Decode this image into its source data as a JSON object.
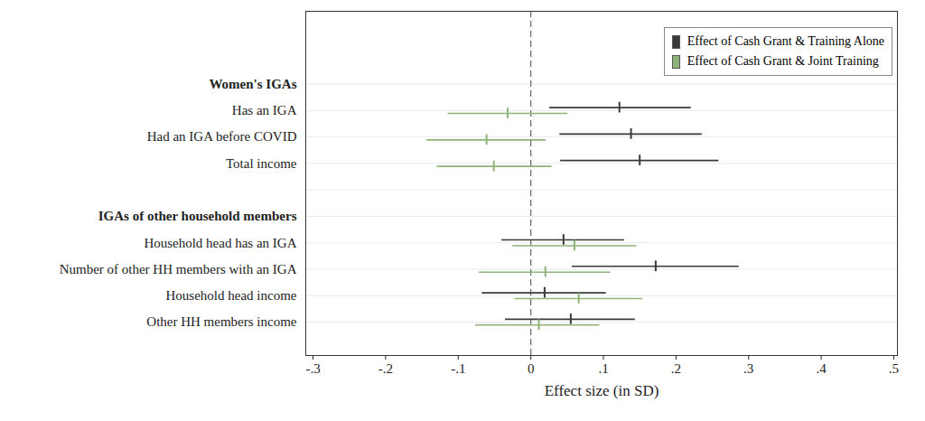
{
  "chart_data": {
    "type": "coefficient",
    "orientation": "horizontal",
    "xlabel": "Effect size (in SD)",
    "categories": [
      "Women's IGAs",
      "Has an IGA",
      "Had an IGA before COVID",
      "Total income",
      null,
      "IGAs of other household members",
      "Household head has an IGA",
      "Number of other HH members with an IGA",
      "Household head income",
      "Other HH members income"
    ],
    "headers": [
      "Women's IGAs",
      "IGAs of other household members"
    ],
    "series": [
      {
        "name": "Effect of Cash Grant & Training Alone",
        "color": "#3a3a3a",
        "marker": "tick",
        "values": [
          null,
          0.122,
          0.138,
          0.15,
          null,
          null,
          0.045,
          0.172,
          0.019,
          0.055
        ],
        "ci_low": [
          null,
          0.026,
          0.04,
          0.041,
          null,
          null,
          -0.04,
          0.057,
          -0.067,
          -0.035
        ],
        "ci_high": [
          null,
          0.221,
          0.236,
          0.259,
          null,
          null,
          0.129,
          0.287,
          0.104,
          0.144
        ]
      },
      {
        "name": "Effect of Cash Grant & Joint Training",
        "color": "#8db37a",
        "marker": "tick",
        "values": [
          null,
          -0.032,
          -0.061,
          -0.051,
          null,
          null,
          0.06,
          0.02,
          0.066,
          0.011
        ],
        "ci_low": [
          null,
          -0.114,
          -0.143,
          -0.129,
          null,
          null,
          -0.025,
          -0.071,
          -0.022,
          -0.076
        ],
        "ci_high": [
          null,
          0.051,
          0.021,
          0.029,
          null,
          null,
          0.146,
          0.11,
          0.154,
          0.095
        ]
      }
    ],
    "xlim": [
      -0.31,
      0.505
    ],
    "xticks": [
      {
        "value": -0.3,
        "label": "-.3"
      },
      {
        "value": -0.2,
        "label": "-.2"
      },
      {
        "value": -0.1,
        "label": "-.1"
      },
      0,
      {
        "value": 0.1,
        "label": ".1"
      },
      {
        "value": 0.2,
        "label": ".2"
      },
      {
        "value": 0.3,
        "label": ".3"
      },
      {
        "value": 0.4,
        "label": ".4"
      },
      {
        "value": 0.5,
        "label": ".5"
      }
    ],
    "xline": 0,
    "grid": true,
    "legend": "upper right"
  }
}
